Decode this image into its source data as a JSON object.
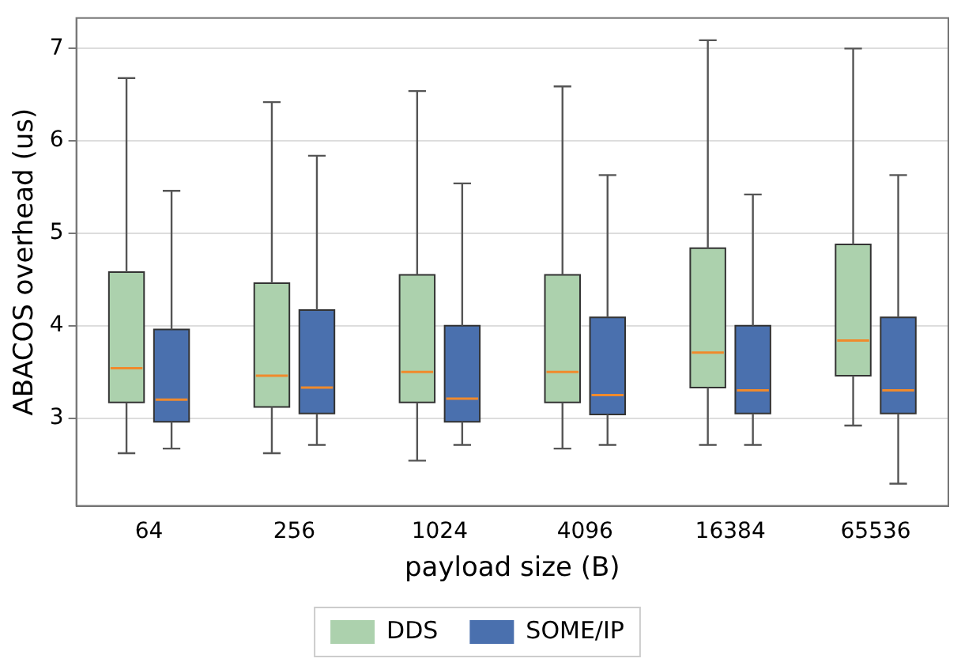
{
  "chart_data": {
    "type": "box",
    "xlabel": "payload size (B)",
    "ylabel": "ABACOS overhead (us)",
    "categories": [
      "64",
      "256",
      "1024",
      "4096",
      "16384",
      "65536"
    ],
    "ylim": [
      2.05,
      7.33
    ],
    "yticks": [
      3,
      4,
      5,
      6,
      7
    ],
    "grid": "y",
    "legend": "bottom",
    "series": [
      {
        "name": "DDS",
        "color": "#acd1ad",
        "boxes": [
          {
            "low": 2.62,
            "q1": 3.17,
            "median": 3.54,
            "q3": 4.58,
            "high": 6.68
          },
          {
            "low": 2.62,
            "q1": 3.12,
            "median": 3.46,
            "q3": 4.46,
            "high": 6.42
          },
          {
            "low": 2.54,
            "q1": 3.17,
            "median": 3.5,
            "q3": 4.55,
            "high": 6.54
          },
          {
            "low": 2.67,
            "q1": 3.17,
            "median": 3.5,
            "q3": 4.55,
            "high": 6.59
          },
          {
            "low": 2.71,
            "q1": 3.33,
            "median": 3.71,
            "q3": 4.84,
            "high": 7.09
          },
          {
            "low": 2.92,
            "q1": 3.46,
            "median": 3.84,
            "q3": 4.88,
            "high": 7.0
          }
        ]
      },
      {
        "name": "SOME/IP",
        "color": "#4a70ae",
        "boxes": [
          {
            "low": 2.67,
            "q1": 2.96,
            "median": 3.2,
            "q3": 3.96,
            "high": 5.46
          },
          {
            "low": 2.71,
            "q1": 3.05,
            "median": 3.33,
            "q3": 4.17,
            "high": 5.84
          },
          {
            "low": 2.71,
            "q1": 2.96,
            "median": 3.21,
            "q3": 4.0,
            "high": 5.54
          },
          {
            "low": 2.71,
            "q1": 3.04,
            "median": 3.25,
            "q3": 4.09,
            "high": 5.63
          },
          {
            "low": 2.71,
            "q1": 3.05,
            "median": 3.3,
            "q3": 4.0,
            "high": 5.42
          },
          {
            "low": 2.29,
            "q1": 3.05,
            "median": 3.3,
            "q3": 4.09,
            "high": 5.63
          }
        ]
      }
    ]
  }
}
